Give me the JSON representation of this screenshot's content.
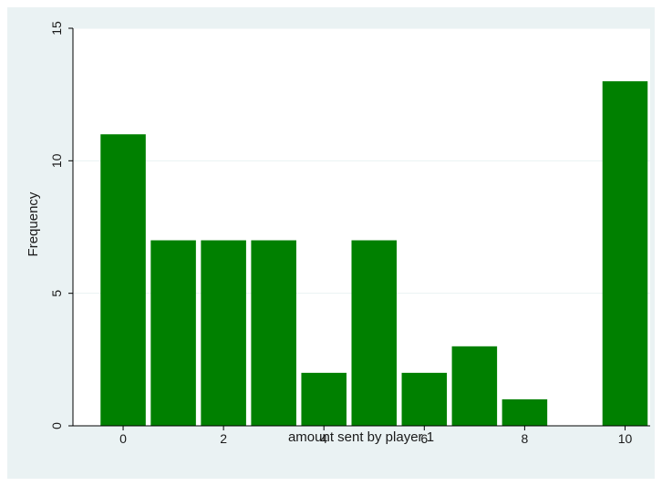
{
  "chart_data": {
    "type": "bar",
    "xlabel": "amount sent by player 1",
    "ylabel": "Frequency",
    "x": [
      0,
      1,
      2,
      3,
      4,
      5,
      6,
      7,
      8,
      10
    ],
    "values": [
      11,
      7,
      7,
      7,
      2,
      7,
      2,
      3,
      1,
      13
    ],
    "xlim": [
      -1,
      10.5
    ],
    "ylim": [
      0,
      15
    ],
    "xticks": [
      0,
      2,
      4,
      6,
      8,
      10
    ],
    "yticks": [
      0,
      5,
      10,
      15
    ],
    "grid": true,
    "legend": "none",
    "colors": {
      "bar": "#008000",
      "background": "#eaf2f3",
      "plot_area": "#ffffff",
      "grid": "#eaf2f3"
    }
  }
}
